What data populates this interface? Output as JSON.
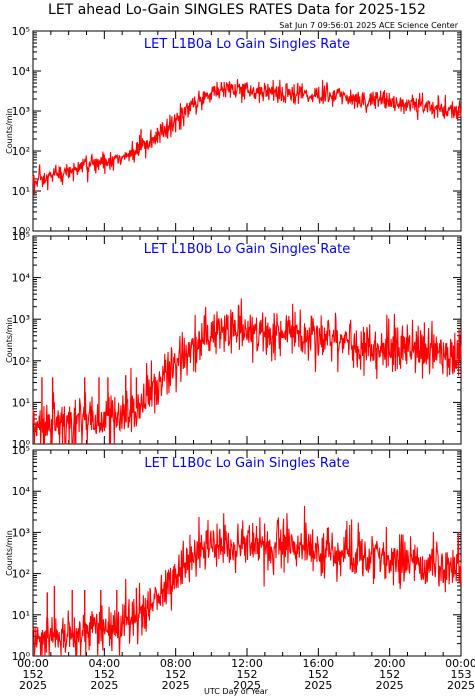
{
  "header": {
    "title": "LET ahead Lo-Gain SINGLES RATES Data for 2025-152",
    "timestamp": "Sat Jun  7 09:56:01 2025 ACE Science Center"
  },
  "axes": {
    "ylabel": "Counts/min",
    "xlabel": "UTC Day of Year",
    "ytick_labels": [
      "10⁰",
      "10¹",
      "10²",
      "10³",
      "10⁴",
      "10⁵"
    ],
    "xtick_labels": [
      {
        "time": "00:00",
        "day": "152",
        "year": "2025"
      },
      {
        "time": "04:00",
        "day": "152",
        "year": "2025"
      },
      {
        "time": "08:00",
        "day": "152",
        "year": "2025"
      },
      {
        "time": "12:00",
        "day": "152",
        "year": "2025"
      },
      {
        "time": "16:00",
        "day": "152",
        "year": "2025"
      },
      {
        "time": "20:00",
        "day": "152",
        "year": "2025"
      },
      {
        "time": "00:00",
        "day": "153",
        "year": "2025"
      }
    ]
  },
  "colors": {
    "series": "#ff0000",
    "panel_title": "#0000ff",
    "axes": "#000000"
  },
  "chart_data": [
    {
      "type": "line",
      "title": "LET L1B0a Lo Gain Singles Rate",
      "yscale": "log",
      "ylim": [
        1,
        100000
      ],
      "xlim_hours": [
        0,
        24
      ],
      "series": [
        {
          "x_hours": [
            0,
            0.5,
            1,
            1.5,
            2,
            2.5,
            3,
            3.5,
            4,
            4.5,
            5,
            5.5,
            6,
            6.5,
            7,
            7.5,
            8,
            8.5,
            9,
            9.5,
            10,
            10.5,
            11,
            11.5,
            12,
            13,
            14,
            15,
            16,
            17,
            18,
            19,
            20,
            21,
            22,
            23,
            24
          ],
          "values": [
            15,
            18,
            22,
            26,
            30,
            36,
            42,
            48,
            55,
            62,
            70,
            85,
            110,
            150,
            220,
            330,
            550,
            900,
            1400,
            2200,
            3000,
            3400,
            3500,
            3400,
            3300,
            3100,
            2900,
            2700,
            2500,
            2300,
            2100,
            1900,
            1700,
            1500,
            1300,
            1100,
            950
          ],
          "noise": 0.14,
          "spikes": [
            {
              "x_hours": 5.9,
              "values": [
                150,
                250,
                350
              ]
            },
            {
              "x_hours": 6.9,
              "values": [
                300,
                380
              ]
            }
          ]
        }
      ]
    },
    {
      "type": "line",
      "title": "LET L1B0b Lo Gain Singles Rate",
      "yscale": "log",
      "ylim": [
        1,
        100000
      ],
      "xlim_hours": [
        0,
        24
      ],
      "series": [
        {
          "x_hours": [
            0,
            0.5,
            1,
            1.5,
            2,
            2.5,
            3,
            3.5,
            4,
            4.5,
            5,
            5.5,
            6,
            6.5,
            7,
            7.5,
            8,
            8.5,
            9,
            9.5,
            10,
            10.5,
            11,
            11.5,
            12,
            13,
            14,
            15,
            16,
            17,
            18,
            19,
            20,
            21,
            22,
            23,
            24
          ],
          "values": [
            2.5,
            2.5,
            2.8,
            3,
            3.2,
            3.5,
            3.8,
            4,
            4.5,
            5,
            5.5,
            6,
            8,
            14,
            25,
            45,
            80,
            140,
            220,
            330,
            450,
            520,
            540,
            520,
            480,
            450,
            420,
            380,
            340,
            300,
            270,
            240,
            210,
            190,
            170,
            150,
            130
          ],
          "noise": 0.3,
          "spikes": [
            {
              "x_hours": 0.5,
              "values": [
                40
              ]
            },
            {
              "x_hours": 1.1,
              "values": [
                40
              ]
            },
            {
              "x_hours": 2.9,
              "values": [
                40
              ]
            },
            {
              "x_hours": 3.7,
              "values": [
                40
              ]
            },
            {
              "x_hours": 4.2,
              "values": [
                40
              ]
            },
            {
              "x_hours": 5.2,
              "values": [
                45
              ]
            },
            {
              "x_hours": 5.8,
              "values": [
                40
              ]
            }
          ]
        }
      ]
    },
    {
      "type": "line",
      "title": "LET L1B0c Lo Gain Singles Rate",
      "yscale": "log",
      "ylim": [
        1,
        100000
      ],
      "xlim_hours": [
        0,
        24
      ],
      "series": [
        {
          "x_hours": [
            0,
            0.5,
            1,
            1.5,
            2,
            2.5,
            3,
            3.5,
            4,
            4.5,
            5,
            5.5,
            6,
            6.5,
            7,
            7.5,
            8,
            8.5,
            9,
            9.5,
            10,
            10.5,
            11,
            11.5,
            12,
            13,
            14,
            15,
            16,
            17,
            18,
            19,
            20,
            21,
            22,
            23,
            24
          ],
          "values": [
            2.5,
            2.5,
            2.8,
            3,
            3.2,
            3.5,
            3.8,
            4,
            4.5,
            5,
            5.5,
            7,
            10,
            18,
            30,
            55,
            100,
            170,
            270,
            400,
            520,
            560,
            570,
            560,
            520,
            480,
            440,
            400,
            360,
            320,
            290,
            260,
            230,
            200,
            180,
            160,
            140
          ],
          "noise": 0.3,
          "spikes": [
            {
              "x_hours": 0.8,
              "values": [
                35
              ]
            },
            {
              "x_hours": 1.2,
              "values": [
                50
              ]
            },
            {
              "x_hours": 2.2,
              "values": [
                40
              ]
            },
            {
              "x_hours": 2.9,
              "values": [
                40
              ]
            },
            {
              "x_hours": 3.8,
              "values": [
                40
              ]
            },
            {
              "x_hours": 4.7,
              "values": [
                40
              ]
            },
            {
              "x_hours": 5.8,
              "values": [
                45
              ]
            }
          ]
        }
      ]
    }
  ]
}
